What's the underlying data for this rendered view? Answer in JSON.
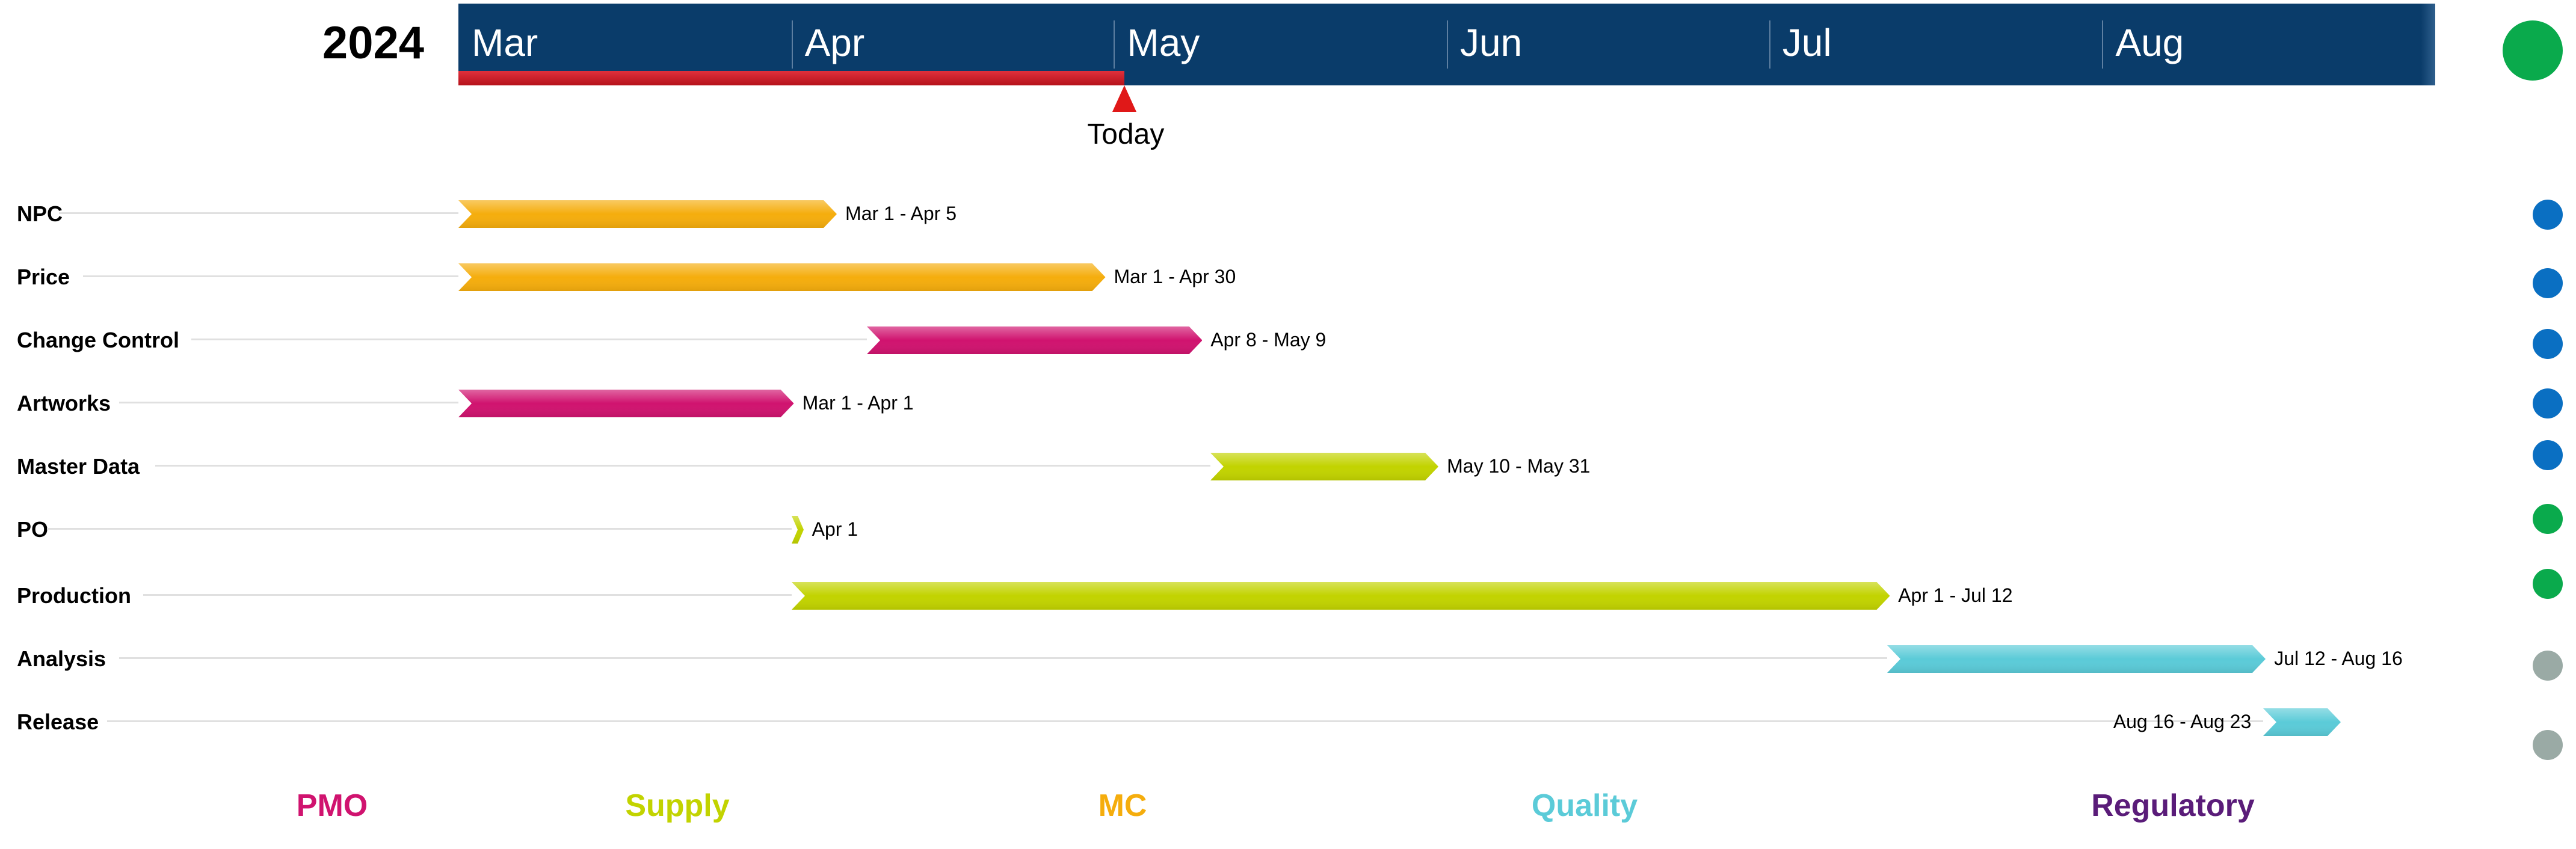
{
  "header": {
    "year": "2024",
    "today_label": "Today"
  },
  "status_top": {
    "color": "#0aaa4c"
  },
  "legend": [
    {
      "label": "PMO",
      "color": "#d0136f"
    },
    {
      "label": "Supply",
      "color": "#c2d300"
    },
    {
      "label": "MC",
      "color": "#f5ad0d"
    },
    {
      "label": "Quality",
      "color": "#5bcbd8"
    },
    {
      "label": "Regulatory",
      "color": "#5a1c79"
    }
  ],
  "chart_data": {
    "type": "gantt",
    "year": 2024,
    "timeline": {
      "start": "2024-03-01",
      "end": "2024-09-01",
      "today": "2024-05-02"
    },
    "months": [
      "Mar",
      "Apr",
      "May",
      "Jun",
      "Jul",
      "Aug"
    ],
    "tasks": [
      {
        "name": "NPC",
        "start": "2024-03-01",
        "end": "2024-04-05",
        "label": "Mar 1 - Apr 5",
        "group": "MC",
        "color": "#f5ad0d",
        "status_color": "#0a6fc2",
        "label_side": "right"
      },
      {
        "name": "Price",
        "start": "2024-03-01",
        "end": "2024-04-30",
        "label": "Mar 1 - Apr 30",
        "group": "MC",
        "color": "#f5ad0d",
        "status_color": "#0a6fc2",
        "label_side": "right"
      },
      {
        "name": "Change Control",
        "start": "2024-04-08",
        "end": "2024-05-09",
        "label": "Apr 8 - May 9",
        "group": "PMO",
        "color": "#d0136f",
        "status_color": "#0a6fc2",
        "label_side": "right"
      },
      {
        "name": "Artworks",
        "start": "2024-03-01",
        "end": "2024-04-01",
        "label": "Mar 1 - Apr 1",
        "group": "PMO",
        "color": "#d0136f",
        "status_color": "#0a6fc2",
        "label_side": "right"
      },
      {
        "name": "Master Data",
        "start": "2024-05-10",
        "end": "2024-05-31",
        "label": "May 10 - May 31",
        "group": "Supply",
        "color": "#c2d300",
        "status_color": "#0a6fc2",
        "label_side": "right"
      },
      {
        "name": "PO",
        "start": "2024-04-01",
        "end": "2024-04-01",
        "label": "Apr 1",
        "group": "Supply",
        "color": "#c2d300",
        "status_color": "#0aaa4c",
        "label_side": "right"
      },
      {
        "name": "Production",
        "start": "2024-04-01",
        "end": "2024-07-12",
        "label": "Apr 1 - Jul 12",
        "group": "Supply",
        "color": "#c2d300",
        "status_color": "#0aaa4c",
        "label_side": "right"
      },
      {
        "name": "Analysis",
        "start": "2024-07-12",
        "end": "2024-08-16",
        "label": "Jul 12 - Aug 16",
        "group": "Quality",
        "color": "#5bcbd8",
        "status_color": "#9aaaa5",
        "label_side": "right"
      },
      {
        "name": "Release",
        "start": "2024-08-16",
        "end": "2024-08-23",
        "label": "Aug 16 - Aug 23",
        "group": "Quality",
        "color": "#5bcbd8",
        "status_color": "#9aaaa5",
        "label_side": "left"
      }
    ]
  }
}
